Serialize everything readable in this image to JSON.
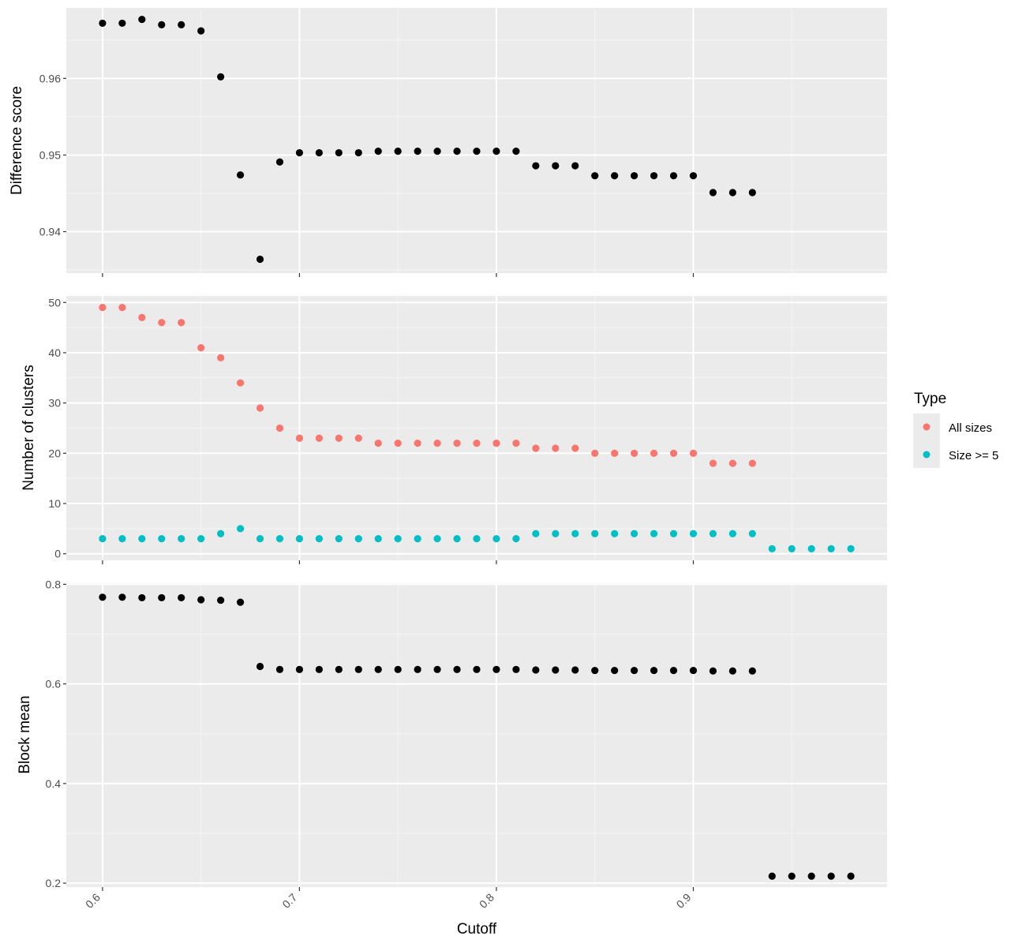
{
  "chart_data": [
    {
      "id": "difference",
      "type": "scatter",
      "ylabel": "Difference score",
      "xlim": [
        0.5816,
        0.9984
      ],
      "ylim": [
        0.9346,
        0.9692
      ],
      "yticks": [
        0.94,
        0.95,
        0.96
      ],
      "ytick_labels": [
        "0.94",
        "0.95",
        "0.96"
      ],
      "grid": true,
      "series": [
        {
          "color": "#000000",
          "x": [
            0.6,
            0.61,
            0.62,
            0.63,
            0.64,
            0.65,
            0.66,
            0.67,
            0.68,
            0.69,
            0.7,
            0.71,
            0.72,
            0.73,
            0.74,
            0.75,
            0.76,
            0.77,
            0.78,
            0.79,
            0.8,
            0.81,
            0.82,
            0.83,
            0.84,
            0.85,
            0.86,
            0.87,
            0.88,
            0.89,
            0.9,
            0.91,
            0.92,
            0.93
          ],
          "y": [
            0.9672,
            0.9672,
            0.9677,
            0.967,
            0.967,
            0.9662,
            0.9602,
            0.9474,
            0.9364,
            0.9491,
            0.9503,
            0.9503,
            0.9503,
            0.9503,
            0.9505,
            0.9505,
            0.9505,
            0.9505,
            0.9505,
            0.9505,
            0.9505,
            0.9505,
            0.9486,
            0.9486,
            0.9486,
            0.9473,
            0.9473,
            0.9473,
            0.9473,
            0.9473,
            0.9473,
            0.9451,
            0.9451,
            0.9451
          ]
        }
      ]
    },
    {
      "id": "clusters",
      "type": "scatter",
      "ylabel": "Number of clusters",
      "xlim": [
        0.5816,
        0.9984
      ],
      "ylim": [
        -1.3,
        51.3
      ],
      "yticks": [
        0,
        10,
        20,
        30,
        40,
        50
      ],
      "ytick_labels": [
        "0",
        "10",
        "20",
        "30",
        "40",
        "50"
      ],
      "grid": true,
      "legend": {
        "title": "Type",
        "placement": "right",
        "entries": [
          {
            "label": "All sizes",
            "color": "#F8766D"
          },
          {
            "label": "Size >= 5",
            "color": "#00BFC4"
          }
        ]
      },
      "series": [
        {
          "name": "All sizes",
          "color": "#F8766D",
          "x": [
            0.6,
            0.61,
            0.62,
            0.63,
            0.64,
            0.65,
            0.66,
            0.67,
            0.68,
            0.69,
            0.7,
            0.71,
            0.72,
            0.73,
            0.74,
            0.75,
            0.76,
            0.77,
            0.78,
            0.79,
            0.8,
            0.81,
            0.82,
            0.83,
            0.84,
            0.85,
            0.86,
            0.87,
            0.88,
            0.89,
            0.9,
            0.91,
            0.92,
            0.93
          ],
          "y": [
            49,
            49,
            47,
            46,
            46,
            41,
            39,
            34,
            29,
            25,
            23,
            23,
            23,
            23,
            22,
            22,
            22,
            22,
            22,
            22,
            22,
            22,
            21,
            21,
            21,
            20,
            20,
            20,
            20,
            20,
            20,
            18,
            18,
            18
          ]
        },
        {
          "name": "Size >= 5",
          "color": "#00BFC4",
          "x": [
            0.6,
            0.61,
            0.62,
            0.63,
            0.64,
            0.65,
            0.66,
            0.67,
            0.68,
            0.69,
            0.7,
            0.71,
            0.72,
            0.73,
            0.74,
            0.75,
            0.76,
            0.77,
            0.78,
            0.79,
            0.8,
            0.81,
            0.82,
            0.83,
            0.84,
            0.85,
            0.86,
            0.87,
            0.88,
            0.89,
            0.9,
            0.91,
            0.92,
            0.93,
            0.94,
            0.95,
            0.96,
            0.97,
            0.98
          ],
          "y": [
            3,
            3,
            3,
            3,
            3,
            3,
            4,
            5,
            3,
            3,
            3,
            3,
            3,
            3,
            3,
            3,
            3,
            3,
            3,
            3,
            3,
            3,
            4,
            4,
            4,
            4,
            4,
            4,
            4,
            4,
            4,
            4,
            4,
            4,
            1,
            1,
            1,
            1,
            1
          ]
        }
      ]
    },
    {
      "id": "blockmean",
      "type": "scatter",
      "ylabel": "Block mean",
      "xlabel": "Cutoff",
      "xlim": [
        0.5816,
        0.9984
      ],
      "ylim": [
        0.1922,
        0.8022
      ],
      "yticks": [
        0.2,
        0.4,
        0.6,
        0.8
      ],
      "ytick_labels": [
        "0.2",
        "0.4",
        "0.6",
        "0.8"
      ],
      "xticks": [
        0.6,
        0.7,
        0.8,
        0.9
      ],
      "xtick_labels": [
        "0.6",
        "0.7",
        "0.8",
        "0.9"
      ],
      "grid": true,
      "series": [
        {
          "color": "#000000",
          "x": [
            0.6,
            0.61,
            0.62,
            0.63,
            0.64,
            0.65,
            0.66,
            0.67,
            0.68,
            0.69,
            0.7,
            0.71,
            0.72,
            0.73,
            0.74,
            0.75,
            0.76,
            0.77,
            0.78,
            0.79,
            0.8,
            0.81,
            0.82,
            0.83,
            0.84,
            0.85,
            0.86,
            0.87,
            0.88,
            0.89,
            0.9,
            0.91,
            0.92,
            0.93,
            0.94,
            0.95,
            0.96,
            0.97,
            0.98
          ],
          "y": [
            0.774,
            0.774,
            0.773,
            0.773,
            0.773,
            0.769,
            0.768,
            0.764,
            0.635,
            0.629,
            0.629,
            0.629,
            0.629,
            0.629,
            0.629,
            0.629,
            0.629,
            0.629,
            0.629,
            0.629,
            0.629,
            0.629,
            0.628,
            0.628,
            0.628,
            0.627,
            0.627,
            0.627,
            0.627,
            0.627,
            0.627,
            0.626,
            0.626,
            0.626,
            0.214,
            0.214,
            0.214,
            0.214,
            0.214
          ]
        }
      ]
    }
  ]
}
